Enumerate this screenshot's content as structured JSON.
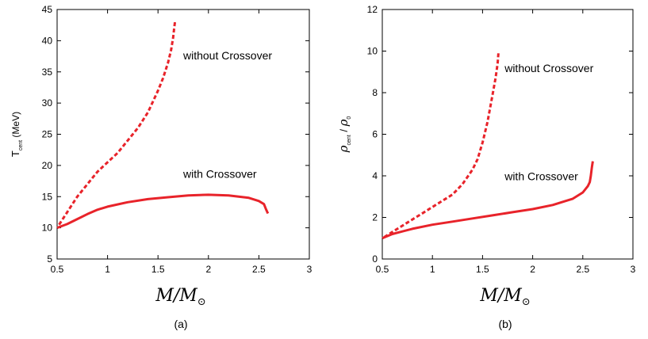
{
  "chart_data": [
    {
      "type": "line",
      "panel_label": "(a)",
      "xlabel": "M/M",
      "xlabel_sub": "⊙",
      "ylabel": "T",
      "ylabel_sub": "cent",
      "ylabel_unit": "(MeV)",
      "xlim": [
        0.5,
        3
      ],
      "ylim": [
        5,
        45
      ],
      "xticks": [
        0.5,
        1,
        1.5,
        2,
        2.5,
        3
      ],
      "xtick_labels": [
        "0.5",
        "1",
        "1.5",
        "2",
        "2.5",
        "3"
      ],
      "yticks": [
        5,
        10,
        15,
        20,
        25,
        30,
        35,
        40,
        45
      ],
      "ytick_labels": [
        "5",
        "10",
        "15",
        "20",
        "25",
        "30",
        "35",
        "40",
        "45"
      ],
      "color": "#e8232a",
      "series": [
        {
          "name": "without Crossover",
          "style": "dashed",
          "x": [
            0.52,
            0.6,
            0.7,
            0.8,
            0.9,
            1.0,
            1.1,
            1.2,
            1.3,
            1.4,
            1.5,
            1.55,
            1.6,
            1.63,
            1.65,
            1.66,
            1.67
          ],
          "y": [
            10.5,
            12.5,
            15.0,
            17.0,
            19.0,
            20.5,
            22.0,
            24.0,
            26.0,
            28.5,
            32.0,
            34.0,
            36.5,
            38.5,
            40.5,
            42.0,
            43.2
          ]
        },
        {
          "name": "with Crossover",
          "style": "solid",
          "x": [
            0.5,
            0.6,
            0.7,
            0.8,
            0.9,
            1.0,
            1.2,
            1.4,
            1.6,
            1.8,
            2.0,
            2.2,
            2.4,
            2.5,
            2.55,
            2.57,
            2.59
          ],
          "y": [
            10.0,
            10.6,
            11.4,
            12.2,
            12.9,
            13.4,
            14.1,
            14.6,
            14.9,
            15.2,
            15.3,
            15.2,
            14.8,
            14.3,
            13.8,
            13.0,
            12.3
          ]
        }
      ],
      "annotations": [
        {
          "text": "without Crossover",
          "x": 1.75,
          "y": 37
        },
        {
          "text": "with Crossover",
          "x": 1.75,
          "y": 18
        }
      ]
    },
    {
      "type": "line",
      "panel_label": "(b)",
      "xlabel": "M/M",
      "xlabel_sub": "⊙",
      "ylabel": "ρ",
      "ylabel_sub": "cent",
      "ylabel_sep": "/",
      "ylabel2": "ρ",
      "ylabel2_sub": "0",
      "xlim": [
        0.5,
        3
      ],
      "ylim": [
        0,
        12
      ],
      "xticks": [
        0.5,
        1,
        1.5,
        2,
        2.5,
        3
      ],
      "xtick_labels": [
        "0.5",
        "1",
        "1.5",
        "2",
        "2.5",
        "3"
      ],
      "yticks": [
        0,
        2,
        4,
        6,
        8,
        10,
        12
      ],
      "ytick_labels": [
        "0",
        "2",
        "4",
        "6",
        "8",
        "10",
        "12"
      ],
      "color": "#e8232a",
      "series": [
        {
          "name": "without Crossover",
          "style": "dashed",
          "x": [
            0.52,
            0.6,
            0.7,
            0.8,
            0.9,
            1.0,
            1.1,
            1.2,
            1.3,
            1.4,
            1.45,
            1.5,
            1.55,
            1.6,
            1.63,
            1.65,
            1.66
          ],
          "y": [
            1.05,
            1.3,
            1.6,
            1.9,
            2.2,
            2.5,
            2.8,
            3.1,
            3.6,
            4.3,
            4.8,
            5.6,
            6.6,
            7.9,
            8.7,
            9.4,
            10.0
          ]
        },
        {
          "name": "with Crossover",
          "style": "solid",
          "x": [
            0.5,
            0.6,
            0.8,
            1.0,
            1.2,
            1.4,
            1.6,
            1.8,
            2.0,
            2.2,
            2.4,
            2.5,
            2.55,
            2.57,
            2.58,
            2.59,
            2.6
          ],
          "y": [
            1.0,
            1.2,
            1.45,
            1.65,
            1.8,
            1.95,
            2.1,
            2.25,
            2.4,
            2.6,
            2.9,
            3.2,
            3.5,
            3.7,
            4.0,
            4.4,
            4.7
          ]
        }
      ],
      "annotations": [
        {
          "text": "without Crossover",
          "x": 1.72,
          "y": 9.0
        },
        {
          "text": "with Crossover",
          "x": 1.72,
          "y": 3.8
        }
      ]
    }
  ]
}
